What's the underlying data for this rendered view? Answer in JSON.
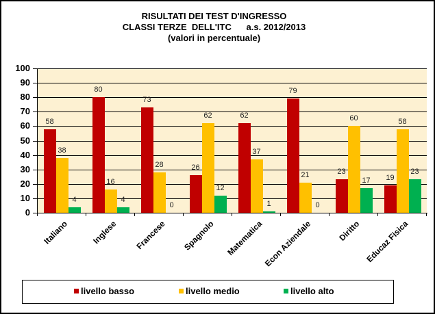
{
  "chart_data": {
    "type": "bar",
    "title": "RISULTATI DEI TEST D'INGRESSO",
    "subtitle_line2": "CLASSI TERZE  DELL'ITC      a.s. 2012/2013",
    "subtitle_line3": "(valori in percentuale)",
    "xlabel": "",
    "ylabel": "",
    "ylim": [
      0,
      100
    ],
    "yticks": [
      "0",
      "10",
      "20",
      "30",
      "40",
      "50",
      "60",
      "70",
      "80",
      "90",
      "100"
    ],
    "grid": true,
    "legend_position": "bottom",
    "categories": [
      "Italiano",
      "Inglese",
      "Francese",
      "Spagnolo",
      "Matematica",
      "Econ Aziendale",
      "Diritto",
      "Educaz Fisica"
    ],
    "series": [
      {
        "name": "livello basso",
        "color": "#c00000",
        "values": [
          58,
          80,
          73,
          26,
          62,
          79,
          23,
          19
        ]
      },
      {
        "name": "livello medio",
        "color": "#ffc000",
        "values": [
          38,
          16,
          28,
          62,
          37,
          21,
          60,
          58
        ]
      },
      {
        "name": "livello alto",
        "color": "#00b050",
        "values": [
          4,
          4,
          0,
          12,
          1,
          0,
          17,
          23
        ]
      }
    ]
  },
  "colors": {
    "plot_background": "#fdf1d2",
    "basso": "#c00000",
    "medio": "#ffc000",
    "alto": "#00b050"
  }
}
